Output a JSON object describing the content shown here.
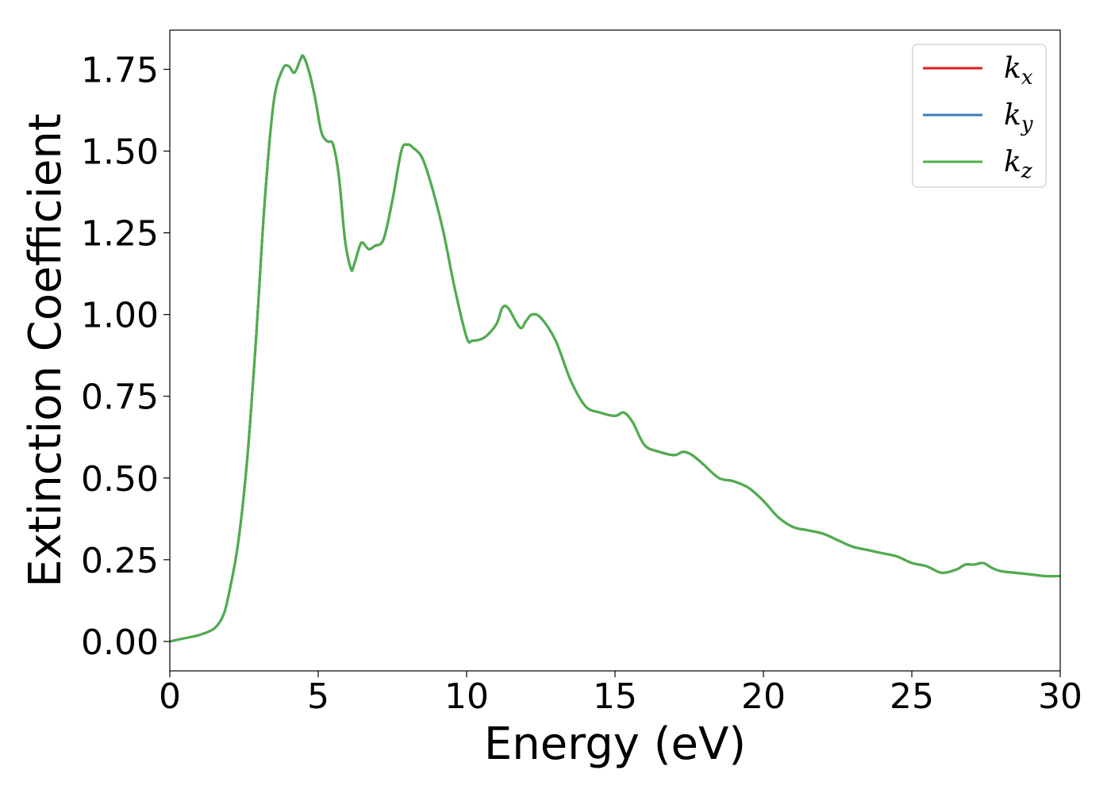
{
  "chart_data": {
    "type": "line",
    "title": "",
    "xlabel": "Energy (eV)",
    "ylabel": "Extinction Coefficient",
    "xlim": [
      0,
      30
    ],
    "ylim": [
      -0.09,
      1.87
    ],
    "xticks": [
      0,
      5,
      10,
      15,
      20,
      25,
      30
    ],
    "xtick_labels": [
      "0",
      "5",
      "10",
      "15",
      "20",
      "25",
      "30"
    ],
    "yticks": [
      0.0,
      0.25,
      0.5,
      0.75,
      1.0,
      1.25,
      1.5,
      1.75
    ],
    "ytick_labels": [
      "0.00",
      "0.25",
      "0.50",
      "0.75",
      "1.00",
      "1.25",
      "1.50",
      "1.75"
    ],
    "grid": false,
    "legend_position": "top-right",
    "legend": [
      {
        "base": "k",
        "sub": "x",
        "color": "#e41a1c"
      },
      {
        "base": "k",
        "sub": "y",
        "color": "#377eb8"
      },
      {
        "base": "k",
        "sub": "z",
        "color": "#4daf4a"
      }
    ],
    "x": [
      0,
      0.5,
      1.0,
      1.5,
      1.8,
      2.0,
      2.3,
      2.6,
      2.9,
      3.2,
      3.5,
      3.8,
      4.0,
      4.2,
      4.4,
      4.5,
      4.7,
      4.9,
      5.1,
      5.3,
      5.5,
      5.7,
      5.9,
      6.1,
      6.2,
      6.4,
      6.5,
      6.7,
      6.9,
      7.2,
      7.5,
      7.8,
      8.0,
      8.2,
      8.5,
      8.8,
      9.2,
      9.6,
      10.0,
      10.2,
      10.6,
      11.0,
      11.2,
      11.4,
      11.8,
      12.0,
      12.2,
      12.5,
      13.0,
      13.5,
      14.0,
      14.5,
      15.0,
      15.3,
      15.6,
      16.0,
      16.5,
      17.0,
      17.3,
      17.6,
      18.0,
      18.5,
      19.0,
      19.5,
      20.0,
      20.5,
      21.0,
      21.5,
      22.0,
      22.5,
      23.0,
      23.5,
      24.0,
      24.5,
      25.0,
      25.5,
      26.0,
      26.5,
      26.8,
      27.1,
      27.4,
      27.7,
      28.0,
      28.5,
      29.0,
      29.5,
      30.0
    ],
    "series": [
      {
        "name": "k_x",
        "color": "#e41a1c",
        "values": [
          0.0,
          0.01,
          0.02,
          0.04,
          0.08,
          0.15,
          0.3,
          0.55,
          0.92,
          1.35,
          1.65,
          1.75,
          1.76,
          1.74,
          1.78,
          1.79,
          1.74,
          1.66,
          1.56,
          1.53,
          1.52,
          1.42,
          1.23,
          1.14,
          1.15,
          1.21,
          1.22,
          1.2,
          1.21,
          1.23,
          1.35,
          1.5,
          1.52,
          1.51,
          1.48,
          1.4,
          1.26,
          1.08,
          0.93,
          0.92,
          0.93,
          0.97,
          1.02,
          1.02,
          0.96,
          0.98,
          1.0,
          0.99,
          0.92,
          0.8,
          0.72,
          0.7,
          0.69,
          0.7,
          0.67,
          0.6,
          0.58,
          0.57,
          0.58,
          0.57,
          0.54,
          0.5,
          0.49,
          0.47,
          0.43,
          0.38,
          0.35,
          0.34,
          0.33,
          0.31,
          0.29,
          0.28,
          0.27,
          0.26,
          0.24,
          0.23,
          0.21,
          0.22,
          0.235,
          0.235,
          0.24,
          0.225,
          0.215,
          0.21,
          0.205,
          0.2,
          0.2
        ]
      },
      {
        "name": "k_y",
        "color": "#377eb8",
        "values": [
          0.0,
          0.01,
          0.02,
          0.04,
          0.08,
          0.15,
          0.3,
          0.55,
          0.92,
          1.35,
          1.65,
          1.75,
          1.76,
          1.74,
          1.78,
          1.79,
          1.74,
          1.66,
          1.56,
          1.53,
          1.52,
          1.42,
          1.23,
          1.14,
          1.15,
          1.21,
          1.22,
          1.2,
          1.21,
          1.23,
          1.35,
          1.5,
          1.52,
          1.51,
          1.48,
          1.4,
          1.26,
          1.08,
          0.93,
          0.92,
          0.93,
          0.97,
          1.02,
          1.02,
          0.96,
          0.98,
          1.0,
          0.99,
          0.92,
          0.8,
          0.72,
          0.7,
          0.69,
          0.7,
          0.67,
          0.6,
          0.58,
          0.57,
          0.58,
          0.57,
          0.54,
          0.5,
          0.49,
          0.47,
          0.43,
          0.38,
          0.35,
          0.34,
          0.33,
          0.31,
          0.29,
          0.28,
          0.27,
          0.26,
          0.24,
          0.23,
          0.21,
          0.22,
          0.235,
          0.235,
          0.24,
          0.225,
          0.215,
          0.21,
          0.205,
          0.2,
          0.2
        ]
      },
      {
        "name": "k_z",
        "color": "#4daf4a",
        "values": [
          0.0,
          0.01,
          0.02,
          0.04,
          0.08,
          0.15,
          0.3,
          0.55,
          0.92,
          1.35,
          1.65,
          1.75,
          1.76,
          1.74,
          1.78,
          1.79,
          1.74,
          1.66,
          1.56,
          1.53,
          1.52,
          1.42,
          1.23,
          1.14,
          1.15,
          1.21,
          1.22,
          1.2,
          1.21,
          1.23,
          1.35,
          1.5,
          1.52,
          1.51,
          1.48,
          1.4,
          1.26,
          1.08,
          0.93,
          0.92,
          0.93,
          0.97,
          1.02,
          1.02,
          0.96,
          0.98,
          1.0,
          0.99,
          0.92,
          0.8,
          0.72,
          0.7,
          0.69,
          0.7,
          0.67,
          0.6,
          0.58,
          0.57,
          0.58,
          0.57,
          0.54,
          0.5,
          0.49,
          0.47,
          0.43,
          0.38,
          0.35,
          0.34,
          0.33,
          0.31,
          0.29,
          0.28,
          0.27,
          0.26,
          0.24,
          0.23,
          0.21,
          0.22,
          0.235,
          0.235,
          0.24,
          0.225,
          0.215,
          0.21,
          0.205,
          0.2,
          0.2
        ]
      }
    ]
  }
}
